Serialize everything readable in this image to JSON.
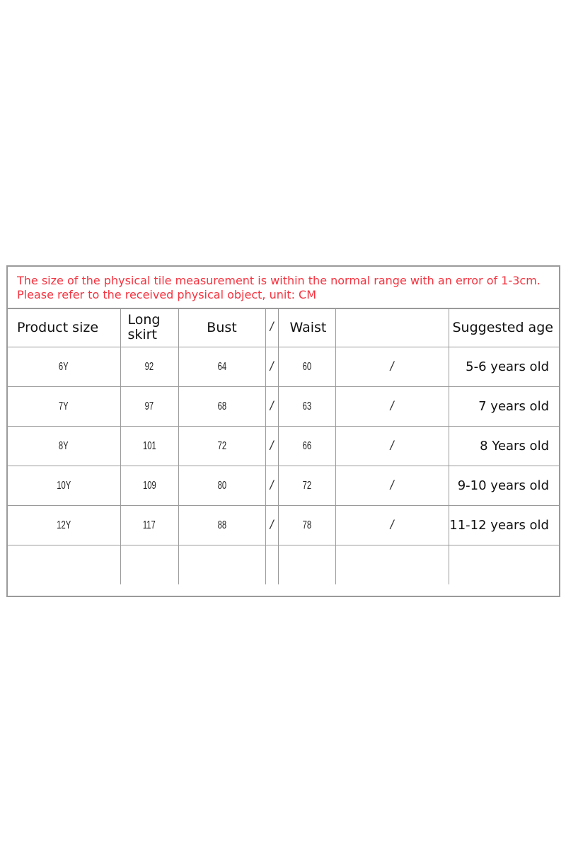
{
  "note": {
    "line1": "The size of the physical tile measurement is within the normal range with an error of 1-3cm.",
    "line2": "Please refer to the received physical object, unit: CM",
    "color": "#f5333f"
  },
  "headers": [
    "Product size",
    "Long skirt",
    "Bust",
    "/",
    "Waist",
    "",
    "Suggested age"
  ],
  "rows": [
    [
      "6Y",
      "92",
      "64",
      "/",
      "60",
      "/",
      "5-6 years old"
    ],
    [
      "7Y",
      "97",
      "68",
      "/",
      "63",
      "/",
      "7 years old"
    ],
    [
      "8Y",
      "101",
      "72",
      "/",
      "66",
      "/",
      "8 Years old"
    ],
    [
      "10Y",
      "109",
      "80",
      "/",
      "72",
      "/",
      "9-10 years old"
    ],
    [
      "12Y",
      "117",
      "88",
      "/",
      "78",
      "/",
      "11-12 years old"
    ]
  ]
}
